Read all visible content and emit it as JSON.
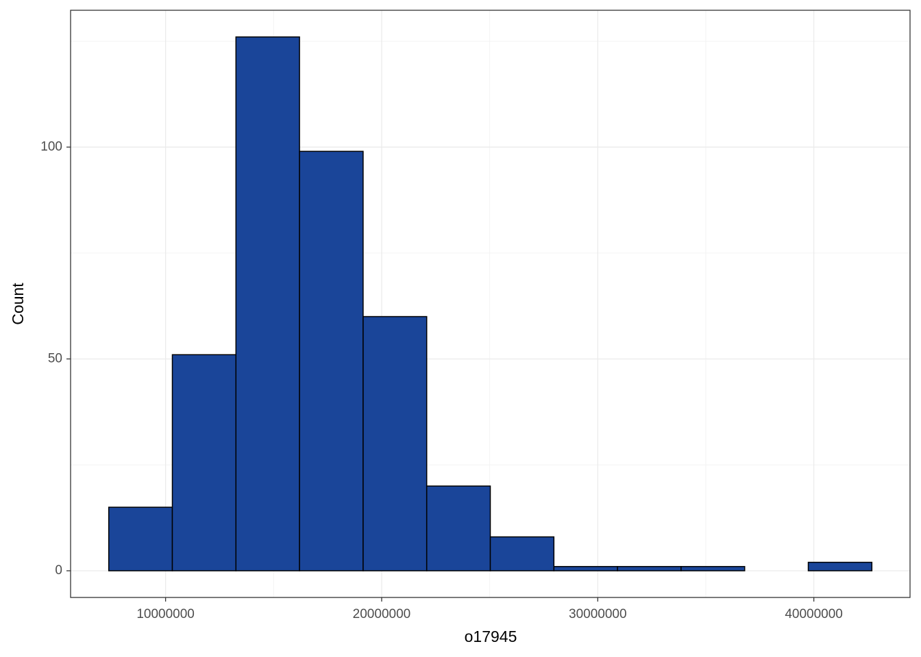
{
  "chart_data": {
    "type": "histogram",
    "x_label": "o17945",
    "y_label": "Count",
    "bins": [
      7370000,
      10313000,
      13256000,
      16199000,
      19142000,
      22085000,
      25028000,
      27971000,
      30914000,
      33857000,
      36800000,
      39743000,
      42686000
    ],
    "values": [
      15,
      51,
      126,
      99,
      60,
      20,
      8,
      1,
      1,
      1,
      0,
      2
    ],
    "color": "#1a4599",
    "xlim": [
      5604000,
      44452000
    ],
    "ylim": [
      -6.3,
      132.3
    ],
    "xticks": [
      10000000,
      20000000,
      30000000,
      40000000
    ],
    "yticks": [
      0,
      50,
      100
    ],
    "grid": true
  }
}
